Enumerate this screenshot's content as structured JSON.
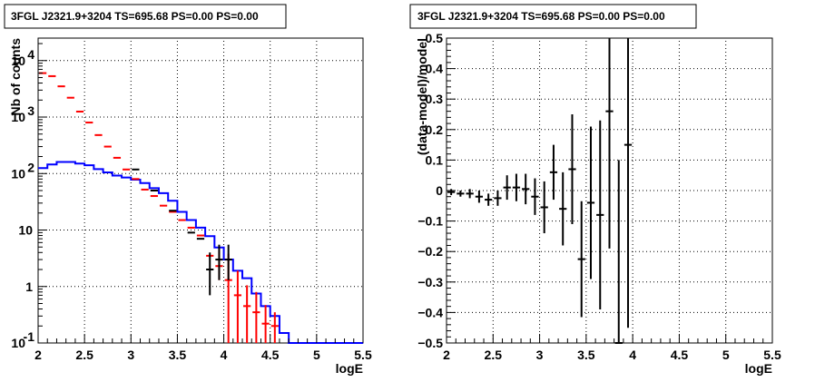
{
  "chart_data": [
    {
      "type": "line",
      "title": "3FGL J2321.9+3204 TS=695.68 PS=0.00 PS=0.00",
      "xlabel": "logE",
      "ylabel": "Nb of counts",
      "xlim": [
        2,
        5.5
      ],
      "ylim": [
        0.1,
        25000
      ],
      "yscale": "log",
      "grid": true,
      "xticks": [
        "2",
        "2.5",
        "3",
        "3.5",
        "4",
        "4.5",
        "5",
        "5.5"
      ],
      "yticks": [
        "10-1",
        "1",
        "10",
        "102",
        "103",
        "104"
      ],
      "bin_edges": [
        2.0,
        2.1,
        2.2,
        2.3,
        2.4,
        2.5,
        2.6,
        2.7,
        2.8,
        2.9,
        3.0,
        3.1,
        3.2,
        3.3,
        3.4,
        3.5,
        3.6,
        3.7,
        3.8,
        3.9,
        4.0,
        4.1,
        4.2,
        4.3,
        4.4,
        4.5,
        4.6,
        4.7,
        4.8,
        4.9,
        5.0,
        5.1,
        5.2,
        5.3,
        5.4,
        5.5
      ],
      "series": [
        {
          "kind": "step",
          "color": "#0000ff",
          "values": [
            125,
            145,
            160,
            160,
            150,
            140,
            120,
            105,
            92,
            85,
            78,
            68,
            55,
            45,
            33,
            21,
            15,
            11,
            7.8,
            4.9,
            3.0,
            1.9,
            1.4,
            0.75,
            0.45,
            0.3,
            0.15,
            0.1,
            0.1,
            0.1,
            0.1,
            0.1,
            0.1,
            0.1,
            0.1
          ]
        },
        {
          "kind": "errorbar",
          "color": "#ff0000",
          "x": [
            2.05,
            2.15,
            2.25,
            2.35,
            2.45,
            2.55,
            2.65,
            2.75,
            2.85,
            2.95,
            3.05,
            3.15,
            3.25,
            3.35,
            3.45,
            3.55,
            3.65,
            3.75,
            3.85,
            3.95,
            4.05,
            4.15,
            4.25,
            4.35,
            4.45,
            4.55
          ],
          "y": [
            6000,
            5300,
            3500,
            2200,
            1250,
            800,
            480,
            300,
            190,
            118,
            80,
            52,
            40,
            27,
            21,
            15,
            11,
            8,
            3.5,
            2.3,
            1.3,
            0.7,
            0.45,
            0.35,
            0.22,
            0.2
          ],
          "err_low": [
            0,
            0,
            0,
            0,
            0,
            0,
            0,
            0,
            0,
            0,
            0,
            0,
            0,
            0,
            0,
            0,
            0,
            0,
            0,
            1,
            1.2,
            0.6,
            0.35,
            0.25,
            0.12,
            0.1
          ],
          "err_high": [
            0,
            0,
            0,
            0,
            0,
            0,
            0,
            0,
            0,
            0,
            0,
            0,
            0,
            0,
            0,
            0,
            0,
            0,
            0,
            2,
            2.5,
            1.2,
            0.6,
            0.45,
            0.25,
            0.15
          ]
        },
        {
          "kind": "errorbar",
          "color": "#000000",
          "x": [
            3.05,
            3.25,
            3.45,
            3.65,
            3.75,
            3.85,
            3.95,
            4.05
          ],
          "y": [
            118,
            50,
            22,
            9,
            7,
            2,
            3,
            3
          ],
          "err_low": [
            0,
            0,
            0,
            0,
            0,
            1.3,
            1.7,
            1.7
          ],
          "err_high": [
            0,
            0,
            0,
            0,
            0,
            2,
            2.5,
            2.5
          ]
        }
      ]
    },
    {
      "type": "scatter",
      "title": "3FGL J2321.9+3204 TS=695.68 PS=0.00 PS=0.00",
      "xlabel": "logE",
      "ylabel": "(data-model)/model",
      "xlim": [
        2,
        5.5
      ],
      "ylim": [
        -0.5,
        0.5
      ],
      "grid": true,
      "xticks": [
        "2",
        "2.5",
        "3",
        "3.5",
        "4",
        "4.5",
        "5",
        "5.5"
      ],
      "yticks": [
        "−0.5",
        "−0.4",
        "−0.3",
        "−0.2",
        "−0.1",
        "0",
        "0.1",
        "0.2",
        "0.3",
        "0.4",
        "0.5"
      ],
      "series": [
        {
          "kind": "errorbar",
          "color": "#000000",
          "x": [
            2.05,
            2.15,
            2.25,
            2.35,
            2.45,
            2.55,
            2.65,
            2.75,
            2.85,
            2.95,
            3.05,
            3.15,
            3.25,
            3.35,
            3.45,
            3.55,
            3.65,
            3.75,
            3.85,
            3.95
          ],
          "y": [
            -0.005,
            -0.01,
            -0.01,
            -0.02,
            -0.03,
            -0.025,
            0.01,
            0.01,
            0.005,
            -0.02,
            -0.055,
            0.06,
            -0.06,
            0.07,
            -0.225,
            -0.04,
            -0.08,
            0.26,
            -0.5,
            0.15
          ],
          "err": [
            0.01,
            0.01,
            0.015,
            0.02,
            0.02,
            0.025,
            0.04,
            0.045,
            0.05,
            0.06,
            0.085,
            0.09,
            0.12,
            0.18,
            0.19,
            0.25,
            0.31,
            0.45,
            0.6,
            0.6
          ]
        }
      ]
    }
  ]
}
